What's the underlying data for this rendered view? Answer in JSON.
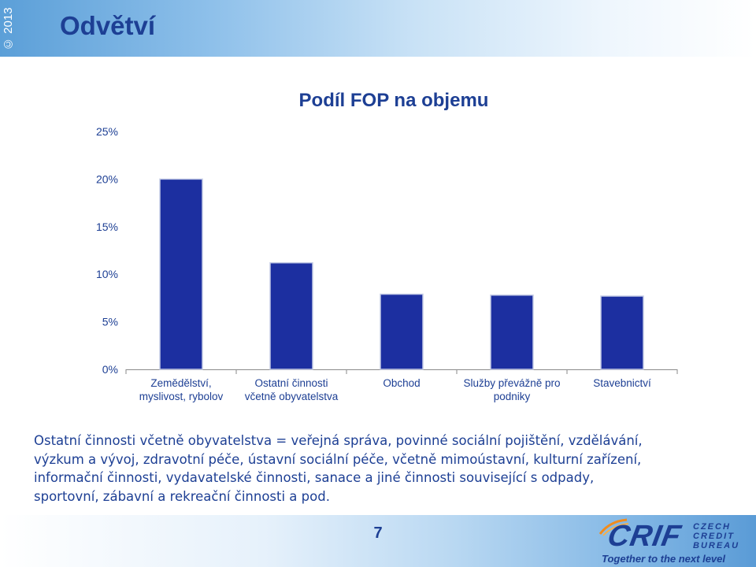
{
  "header": {
    "copyright": "© 2013",
    "title": "Odvětví"
  },
  "chart_data": {
    "type": "bar",
    "title": "Podíl FOP na objemu",
    "categories": [
      [
        "Zemědělství,",
        "myslivost, rybolov"
      ],
      [
        "Ostatní činnosti",
        "včetně obyvatelstva"
      ],
      [
        "Obchod"
      ],
      [
        "Služby převážně pro",
        "podniky"
      ],
      [
        "Stavebnictví"
      ]
    ],
    "values": [
      20.0,
      11.2,
      7.9,
      7.8,
      7.7
    ],
    "ylim": [
      0,
      25
    ],
    "yticks": [
      0,
      5,
      10,
      15,
      20,
      25
    ],
    "ytick_labels": [
      "0%",
      "5%",
      "10%",
      "15%",
      "20%",
      "25%"
    ],
    "xlabel": "",
    "ylabel": "",
    "colors": {
      "bar_fill": "#1c2fa0",
      "bar_edge": "#c4cbe6",
      "axis": "#8a8a8a",
      "text": "#1d3f94"
    }
  },
  "note": {
    "lines": [
      "Ostatní činnosti včetně obyvatelstva = veřejná správa, povinné sociální pojištění, vzdělávání,",
      "výzkum a vývoj, zdravotní péče, ústavní sociální péče, včetně mimoústavní, kulturní zařízení,",
      "informační činnosti, vydavatelské činnosti, sanace a jiné činnosti související s odpady,",
      "sportovní, zábavní a rekreační činnosti a pod."
    ]
  },
  "footer": {
    "page_number": "7",
    "logo": {
      "wordmark": "CRIF",
      "sub_lines": [
        "CZECH",
        "CREDIT",
        "BUREAU"
      ],
      "tagline": "Together to the next level"
    }
  }
}
